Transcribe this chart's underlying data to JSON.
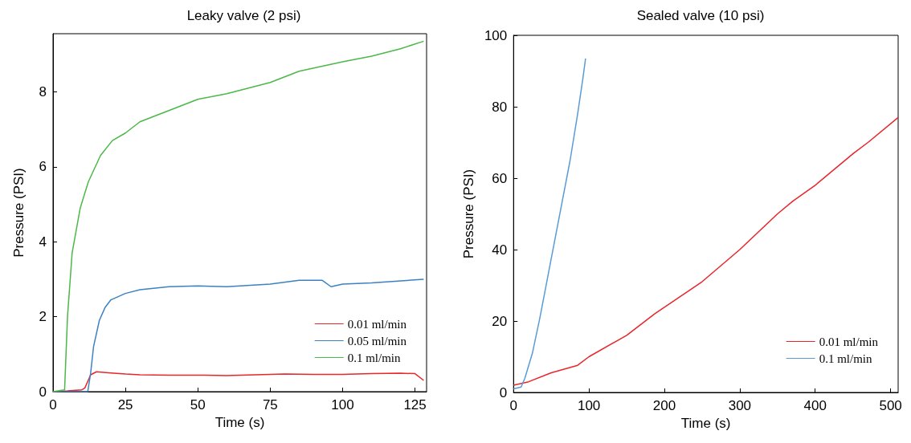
{
  "chart_data": [
    {
      "type": "line",
      "title": "Leaky valve (2 psi)",
      "xlabel": "Time (s)",
      "ylabel": "Pressure (PSI)",
      "xlim": [
        0,
        129
      ],
      "ylim": [
        0,
        9.55
      ],
      "xticks": [
        0,
        25,
        50,
        75,
        100,
        125
      ],
      "yticks": [
        0,
        2,
        4,
        6,
        8
      ],
      "grid": false,
      "legend": "bottom right",
      "marker": "none",
      "line_style": "solid",
      "series": [
        {
          "name": "0.01 ml/min",
          "color": "#e8262b",
          "x": [
            0,
            5,
            10,
            11,
            13,
            15,
            20,
            25,
            30,
            40,
            50,
            60,
            70,
            80,
            90,
            100,
            110,
            120,
            125,
            128
          ],
          "values": [
            0,
            0.02,
            0.05,
            0.1,
            0.45,
            0.53,
            0.5,
            0.47,
            0.45,
            0.44,
            0.44,
            0.43,
            0.45,
            0.47,
            0.46,
            0.46,
            0.48,
            0.49,
            0.48,
            0.3
          ]
        },
        {
          "name": "0.05 ml/min",
          "color": "#3b82c4",
          "x": [
            0,
            12,
            13,
            14,
            16,
            18,
            20,
            25,
            30,
            40,
            50,
            60,
            75,
            85,
            93,
            96,
            100,
            110,
            128
          ],
          "values": [
            0,
            0,
            0.5,
            1.2,
            1.9,
            2.25,
            2.45,
            2.62,
            2.72,
            2.8,
            2.82,
            2.8,
            2.87,
            2.97,
            2.97,
            2.8,
            2.87,
            2.9,
            3.0
          ]
        },
        {
          "name": "0.1 ml/min",
          "color": "#4cb848",
          "x": [
            0,
            4,
            5,
            6.6,
            9.4,
            12.2,
            16.4,
            20.5,
            25,
            30,
            40,
            50,
            60,
            75,
            85,
            100,
            110,
            120,
            128
          ],
          "values": [
            0,
            0.05,
            2,
            3.7,
            4.9,
            5.6,
            6.3,
            6.7,
            6.9,
            7.2,
            7.5,
            7.8,
            7.95,
            8.25,
            8.55,
            8.8,
            8.95,
            9.15,
            9.35
          ]
        }
      ]
    },
    {
      "type": "line",
      "title": "Sealed valve (10 psi)",
      "xlabel": "Time (s)",
      "ylabel": "Pressure (PSI)",
      "xlim": [
        0,
        510
      ],
      "ylim": [
        0,
        100
      ],
      "xticks": [
        0,
        100,
        200,
        300,
        400,
        500
      ],
      "yticks": [
        0,
        20,
        40,
        60,
        80,
        100
      ],
      "grid": false,
      "legend": "bottom right",
      "marker": "none",
      "line_style": "solid",
      "series": [
        {
          "name": "0.01 ml/min",
          "color": "#e8262b",
          "x": [
            0,
            20,
            50,
            85,
            100,
            150,
            187,
            250,
            300,
            350,
            370,
            400,
            451,
            470,
            510
          ],
          "values": [
            2,
            3,
            5.5,
            7.6,
            10,
            16,
            22,
            31,
            40,
            50,
            53.5,
            58,
            67,
            70,
            77
          ]
        },
        {
          "name": "0.1 ml/min",
          "color": "#5a9bd5",
          "x": [
            0,
            10,
            15,
            25,
            35,
            45,
            55,
            65,
            75,
            85,
            92,
            95.5
          ],
          "values": [
            1,
            1.5,
            4,
            11,
            21,
            32,
            43,
            54,
            65,
            78,
            88,
            93.5
          ]
        }
      ]
    }
  ]
}
